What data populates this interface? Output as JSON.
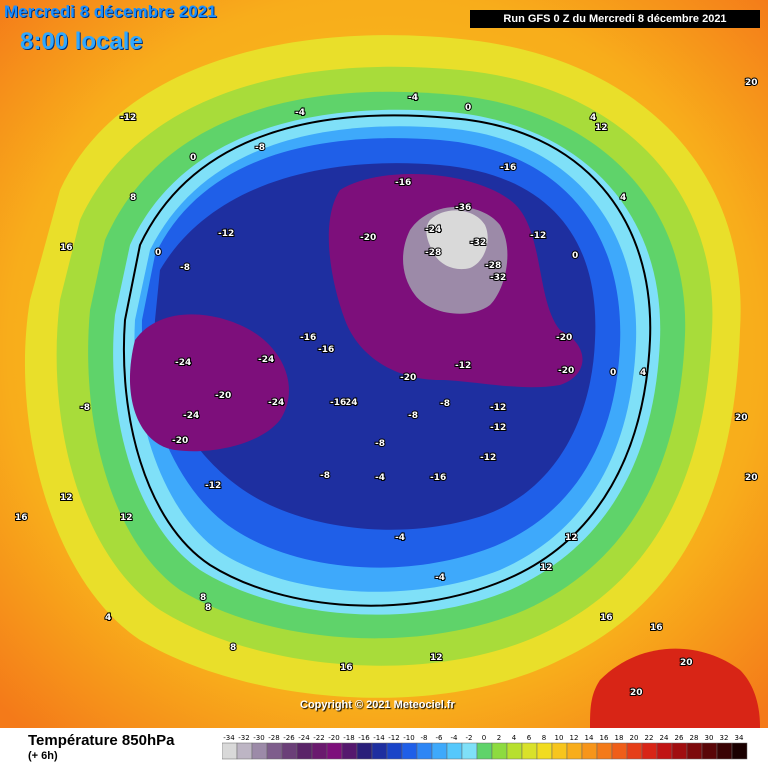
{
  "title": {
    "date_line": "Mercredi 8 décembre 2021",
    "time_line": "8:00 locale",
    "run_info": "Run GFS 0 Z du Mercredi 8 décembre 2021",
    "copyright": "Copyright © 2021 Meteociel.fr"
  },
  "legend": {
    "title": "Température 850hPa",
    "subtitle": "(+ 6h)",
    "values": [
      "-34",
      "-32",
      "-30",
      "-28",
      "-26",
      "-24",
      "-22",
      "-20",
      "-18",
      "-16",
      "-14",
      "-12",
      "-10",
      "-8",
      "-6",
      "-4",
      "-2",
      "0",
      "2",
      "4",
      "6",
      "8",
      "10",
      "12",
      "14",
      "16",
      "18",
      "20",
      "22",
      "24",
      "26",
      "28",
      "30",
      "32",
      "34"
    ],
    "colors": [
      "#d9d9d9",
      "#bdb5c4",
      "#9c8aa8",
      "#7e5d8c",
      "#6b3f78",
      "#5a2468",
      "#6a1a6e",
      "#7d0f7b",
      "#55186e",
      "#2a1f7a",
      "#1e2fa0",
      "#1a44c8",
      "#1f5fe8",
      "#2d86f5",
      "#3ea9fb",
      "#55c8fc",
      "#7fe0f8",
      "#5fd36a",
      "#8ddb3f",
      "#b7e02e",
      "#d9e12a",
      "#f1dc20",
      "#f7c51d",
      "#f8ad1b",
      "#f7951a",
      "#f47a19",
      "#ef5e19",
      "#e63e18",
      "#d82516",
      "#c11414",
      "#a10e10",
      "#7d0a0c",
      "#5a0608",
      "#3a0304",
      "#1a0000"
    ]
  },
  "map_labels": [
    {
      "t": "-36"
    },
    {
      "t": "-32"
    },
    {
      "t": "-28"
    },
    {
      "t": "-28"
    },
    {
      "t": "-32"
    },
    {
      "t": "-24"
    },
    {
      "t": "-20"
    },
    {
      "t": "-20"
    },
    {
      "t": "-24"
    },
    {
      "t": "-24"
    },
    {
      "t": "-20"
    },
    {
      "t": "-24"
    },
    {
      "t": "-20"
    },
    {
      "t": "-24"
    },
    {
      "t": "-20"
    },
    {
      "t": "-20"
    },
    {
      "t": "-16"
    },
    {
      "t": "-16"
    },
    {
      "t": "-16"
    },
    {
      "t": "-16"
    },
    {
      "t": "-16"
    },
    {
      "t": "-12"
    },
    {
      "t": "-12"
    },
    {
      "t": "-12"
    },
    {
      "t": "-12"
    },
    {
      "t": "-12"
    },
    {
      "t": "-12"
    },
    {
      "t": "-8"
    },
    {
      "t": "-8"
    },
    {
      "t": "-8"
    },
    {
      "t": "-8"
    },
    {
      "t": "-8"
    },
    {
      "t": "-8"
    },
    {
      "t": "-4"
    },
    {
      "t": "-4"
    },
    {
      "t": "-4"
    },
    {
      "t": "-4"
    },
    {
      "t": "-4"
    },
    {
      "t": "0"
    },
    {
      "t": "0"
    },
    {
      "t": "0"
    },
    {
      "t": "0"
    },
    {
      "t": "0"
    },
    {
      "t": "4"
    },
    {
      "t": "4"
    },
    {
      "t": "4"
    },
    {
      "t": "4"
    },
    {
      "t": "8"
    },
    {
      "t": "8"
    },
    {
      "t": "8"
    },
    {
      "t": "8"
    },
    {
      "t": "12"
    },
    {
      "t": "12"
    },
    {
      "t": "12"
    },
    {
      "t": "12"
    },
    {
      "t": "12"
    },
    {
      "t": "12"
    },
    {
      "t": "16"
    },
    {
      "t": "16"
    },
    {
      "t": "16"
    },
    {
      "t": "16"
    },
    {
      "t": "16"
    },
    {
      "t": "20"
    },
    {
      "t": "20"
    },
    {
      "t": "20"
    },
    {
      "t": "20"
    },
    {
      "t": "20"
    },
    {
      "t": "24"
    },
    {
      "t": "-16"
    },
    {
      "t": "-12"
    },
    {
      "t": "-12"
    },
    {
      "t": "-8"
    }
  ]
}
